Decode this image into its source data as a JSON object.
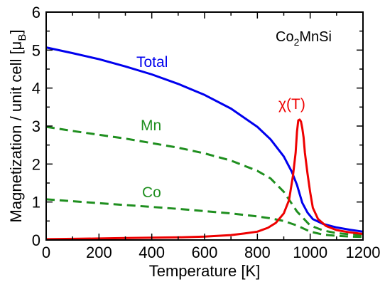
{
  "chart_data": {
    "type": "line",
    "title": "",
    "compound": {
      "main": "Co",
      "sub": "2",
      "rest": "MnSi"
    },
    "xlabel": "Temperature [K]",
    "ylabel": {
      "main": "Magnetization / unit cell [μ",
      "sub": "B",
      "close": "]"
    },
    "xlim": [
      0,
      1200
    ],
    "ylim": [
      0,
      6
    ],
    "xticks": [
      0,
      200,
      400,
      600,
      800,
      1000,
      1200
    ],
    "yticks": [
      0,
      1,
      2,
      3,
      4,
      5,
      6
    ],
    "grid": false,
    "series": [
      {
        "name": "Total",
        "color": "#0000ee",
        "style": "solid",
        "x": [
          0,
          100,
          200,
          300,
          400,
          500,
          600,
          700,
          800,
          850,
          900,
          930,
          950,
          970,
          990,
          1010,
          1050,
          1100,
          1150,
          1200
        ],
        "y": [
          5.07,
          4.92,
          4.76,
          4.57,
          4.36,
          4.11,
          3.82,
          3.46,
          2.98,
          2.65,
          2.2,
          1.8,
          1.45,
          0.98,
          0.72,
          0.55,
          0.42,
          0.33,
          0.27,
          0.22
        ]
      },
      {
        "name": "Mn",
        "color": "#1f8f1f",
        "style": "dashed",
        "x": [
          0,
          100,
          200,
          300,
          400,
          500,
          600,
          700,
          800,
          850,
          900,
          950,
          1000,
          1050,
          1100,
          1150,
          1200
        ],
        "y": [
          2.98,
          2.87,
          2.77,
          2.67,
          2.55,
          2.43,
          2.28,
          2.09,
          1.82,
          1.62,
          1.27,
          0.75,
          0.38,
          0.25,
          0.18,
          0.15,
          0.13
        ]
      },
      {
        "name": "Co",
        "color": "#1f8f1f",
        "style": "dashed",
        "x": [
          0,
          100,
          200,
          300,
          400,
          500,
          600,
          700,
          800,
          850,
          900,
          950,
          1000,
          1050,
          1100,
          1150,
          1200
        ],
        "y": [
          1.07,
          1.02,
          0.97,
          0.92,
          0.87,
          0.82,
          0.76,
          0.7,
          0.62,
          0.57,
          0.5,
          0.38,
          0.22,
          0.14,
          0.11,
          0.09,
          0.08
        ]
      },
      {
        "name": "χ(T)",
        "color": "#ee0000",
        "style": "solid",
        "x": [
          0,
          100,
          200,
          300,
          400,
          500,
          600,
          700,
          750,
          800,
          840,
          870,
          900,
          920,
          935,
          945,
          950,
          955,
          960,
          965,
          970,
          975,
          980,
          990,
          1000,
          1010,
          1030,
          1060,
          1100,
          1150,
          1200
        ],
        "y": [
          0.02,
          0.03,
          0.04,
          0.05,
          0.06,
          0.07,
          0.09,
          0.13,
          0.17,
          0.22,
          0.32,
          0.45,
          0.7,
          1.05,
          1.7,
          2.3,
          2.85,
          3.15,
          3.17,
          3.12,
          2.95,
          2.7,
          2.3,
          1.75,
          1.25,
          0.85,
          0.55,
          0.37,
          0.26,
          0.2,
          0.16
        ]
      }
    ]
  }
}
